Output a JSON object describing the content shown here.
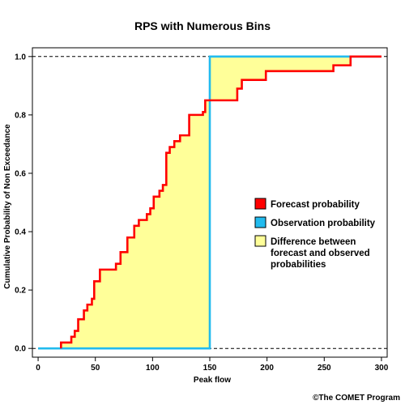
{
  "chart_data": {
    "type": "line",
    "title": "RPS with Numerous Bins",
    "xlabel": "Peak flow",
    "ylabel": "Cumulative Probability of Non Exceedance",
    "xlim": [
      -5,
      305
    ],
    "ylim": [
      -0.03,
      1.03
    ],
    "x_ticks": [
      0,
      50,
      100,
      150,
      200,
      250,
      300
    ],
    "x_tick_labels": [
      "0",
      "50",
      "100",
      "150",
      "200",
      "250",
      "300"
    ],
    "y_ticks": [
      0,
      0.2,
      0.4,
      0.6,
      0.8,
      1
    ],
    "y_tick_labels": [
      "0.0",
      "0.2",
      "0.4",
      "0.6",
      "0.8",
      "1.0"
    ],
    "reference_lines": [
      0,
      1
    ],
    "grid": false,
    "legend_position": "right",
    "series": [
      {
        "name": "Forecast probability",
        "color": "#ff0000",
        "step": true,
        "points": [
          [
            20,
            0
          ],
          [
            20,
            0.02
          ],
          [
            29,
            0.02
          ],
          [
            29,
            0.04
          ],
          [
            32,
            0.04
          ],
          [
            32,
            0.06
          ],
          [
            35,
            0.06
          ],
          [
            35,
            0.1
          ],
          [
            40,
            0.1
          ],
          [
            40,
            0.13
          ],
          [
            43,
            0.13
          ],
          [
            43,
            0.15
          ],
          [
            47,
            0.15
          ],
          [
            47,
            0.17
          ],
          [
            49,
            0.17
          ],
          [
            49,
            0.23
          ],
          [
            54,
            0.23
          ],
          [
            54,
            0.27
          ],
          [
            68,
            0.27
          ],
          [
            68,
            0.29
          ],
          [
            72,
            0.29
          ],
          [
            72,
            0.33
          ],
          [
            78,
            0.33
          ],
          [
            78,
            0.38
          ],
          [
            84,
            0.38
          ],
          [
            84,
            0.42
          ],
          [
            88,
            0.42
          ],
          [
            88,
            0.44
          ],
          [
            95,
            0.44
          ],
          [
            95,
            0.46
          ],
          [
            98,
            0.46
          ],
          [
            98,
            0.48
          ],
          [
            101,
            0.48
          ],
          [
            101,
            0.52
          ],
          [
            106,
            0.52
          ],
          [
            106,
            0.54
          ],
          [
            109,
            0.54
          ],
          [
            109,
            0.56
          ],
          [
            112,
            0.56
          ],
          [
            112,
            0.67
          ],
          [
            115,
            0.67
          ],
          [
            115,
            0.69
          ],
          [
            119,
            0.69
          ],
          [
            119,
            0.71
          ],
          [
            124,
            0.71
          ],
          [
            124,
            0.73
          ],
          [
            132,
            0.73
          ],
          [
            132,
            0.8
          ],
          [
            144,
            0.8
          ],
          [
            144,
            0.81
          ],
          [
            146,
            0.81
          ],
          [
            146,
            0.85
          ],
          [
            174,
            0.85
          ],
          [
            174,
            0.89
          ],
          [
            178,
            0.89
          ],
          [
            178,
            0.92
          ],
          [
            199,
            0.92
          ],
          [
            199,
            0.95
          ],
          [
            258,
            0.95
          ],
          [
            258,
            0.97
          ],
          [
            273,
            0.97
          ],
          [
            273,
            1.0
          ],
          [
            300,
            1.0
          ]
        ]
      },
      {
        "name": "Observation probability",
        "color": "#22bbee",
        "step": true,
        "points": [
          [
            0,
            0
          ],
          [
            150,
            0
          ],
          [
            150,
            1
          ],
          [
            300,
            1
          ]
        ]
      }
    ],
    "fill": {
      "name": "Difference between forecast and observed probabilities",
      "color": "#ffff99"
    }
  },
  "legend": {
    "items": [
      {
        "label": "Forecast probability",
        "color": "#ff0000"
      },
      {
        "label": "Observation probability",
        "color": "#22bbee"
      },
      {
        "label_lines": [
          "Difference between",
          "forecast and observed",
          "probabilities"
        ],
        "color": "#ffff99"
      }
    ]
  },
  "copyright": "©The COMET Program"
}
